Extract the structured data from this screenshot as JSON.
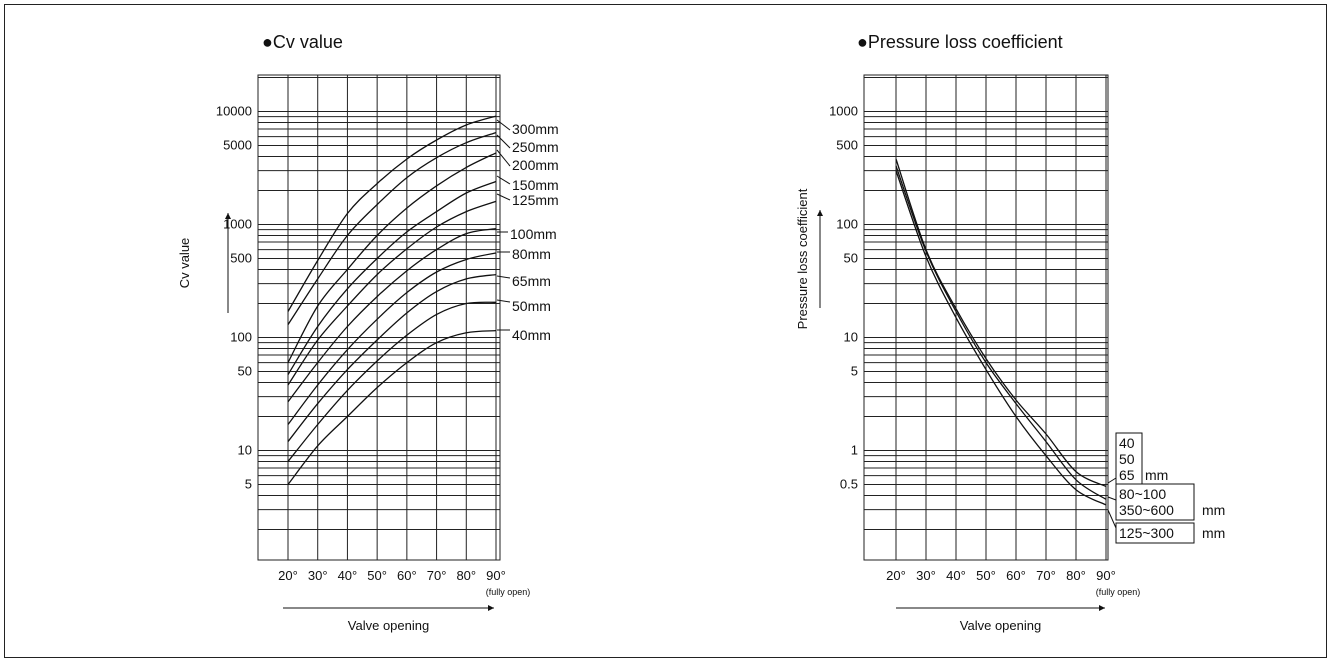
{
  "chart_data": [
    {
      "type": "line",
      "title": "●Cv value",
      "ylabel": "Cv value",
      "xlabel": "Valve opening",
      "x_note": "(fully open)",
      "x": [
        20,
        30,
        40,
        50,
        60,
        70,
        80,
        90
      ],
      "x_tick_labels": [
        "20°",
        "30°",
        "40°",
        "50°",
        "60°",
        "70°",
        "80°",
        "90°"
      ],
      "y_scale": "log",
      "ylim": [
        1,
        30000
      ],
      "y_tick_labels": [
        {
          "value": 5,
          "label": "5"
        },
        {
          "value": 10,
          "label": "10"
        },
        {
          "value": 50,
          "label": "50"
        },
        {
          "value": 100,
          "label": "100"
        },
        {
          "value": 500,
          "label": "500"
        },
        {
          "value": 1000,
          "label": "1000"
        },
        {
          "value": 5000,
          "label": "5000"
        },
        {
          "value": 10000,
          "label": "10000"
        }
      ],
      "series": [
        {
          "name": "300mm",
          "values": [
            170,
            480,
            1250,
            2300,
            3800,
            5600,
            7600,
            9100
          ]
        },
        {
          "name": "250mm",
          "values": [
            130,
            330,
            800,
            1500,
            2600,
            3900,
            5300,
            6500
          ]
        },
        {
          "name": "200mm",
          "values": [
            60,
            190,
            400,
            800,
            1400,
            2200,
            3200,
            4300
          ]
        },
        {
          "name": "150mm",
          "values": [
            47,
            125,
            270,
            500,
            860,
            1300,
            1900,
            2400
          ]
        },
        {
          "name": "125mm",
          "values": [
            38,
            95,
            190,
            360,
            610,
            950,
            1300,
            1600
          ]
        },
        {
          "name": "100mm",
          "values": [
            27,
            60,
            125,
            230,
            390,
            600,
            830,
            920
          ]
        },
        {
          "name": "80mm",
          "values": [
            17,
            38,
            78,
            145,
            250,
            380,
            490,
            560
          ]
        },
        {
          "name": "65mm",
          "values": [
            12,
            26,
            52,
            95,
            165,
            255,
            330,
            360
          ]
        },
        {
          "name": "50mm",
          "values": [
            8,
            17,
            34,
            62,
            105,
            160,
            200,
            205
          ]
        },
        {
          "name": "40mm",
          "values": [
            5,
            11,
            20,
            36,
            60,
            90,
            110,
            115
          ]
        }
      ]
    },
    {
      "type": "line",
      "title": "●Pressure loss coefficient",
      "ylabel": "Pressure loss coefficient",
      "xlabel": "Valve opening",
      "x_note": "(fully open)",
      "x": [
        20,
        30,
        40,
        50,
        60,
        70,
        80,
        90
      ],
      "x_tick_labels": [
        "20°",
        "30°",
        "40°",
        "50°",
        "60°",
        "70°",
        "80°",
        "90°"
      ],
      "y_scale": "log",
      "ylim": [
        0.1,
        3000
      ],
      "y_tick_labels": [
        {
          "value": 0.5,
          "label": "0.5"
        },
        {
          "value": 1,
          "label": "1"
        },
        {
          "value": 5,
          "label": "5"
        },
        {
          "value": 10,
          "label": "10"
        },
        {
          "value": 50,
          "label": "50"
        },
        {
          "value": 100,
          "label": "100"
        },
        {
          "value": 500,
          "label": "500"
        },
        {
          "value": 1000,
          "label": "1000"
        }
      ],
      "series": [
        {
          "name": "40 50 65 mm",
          "label_lines": [
            "40",
            "50",
            "65"
          ],
          "unit": "mm",
          "values": [
            380,
            60,
            18,
            6.5,
            2.8,
            1.4,
            0.65,
            0.48
          ]
        },
        {
          "name": "80~100 350~600 mm",
          "label_lines": [
            "80~100",
            "350~600"
          ],
          "unit": "mm",
          "values": [
            330,
            58,
            17,
            6.0,
            2.6,
            1.2,
            0.55,
            0.37
          ]
        },
        {
          "name": "125~300 mm",
          "label_lines": [
            "125~300"
          ],
          "unit": "mm",
          "values": [
            300,
            52,
            15,
            5.2,
            2.0,
            0.9,
            0.45,
            0.33
          ]
        }
      ]
    }
  ]
}
